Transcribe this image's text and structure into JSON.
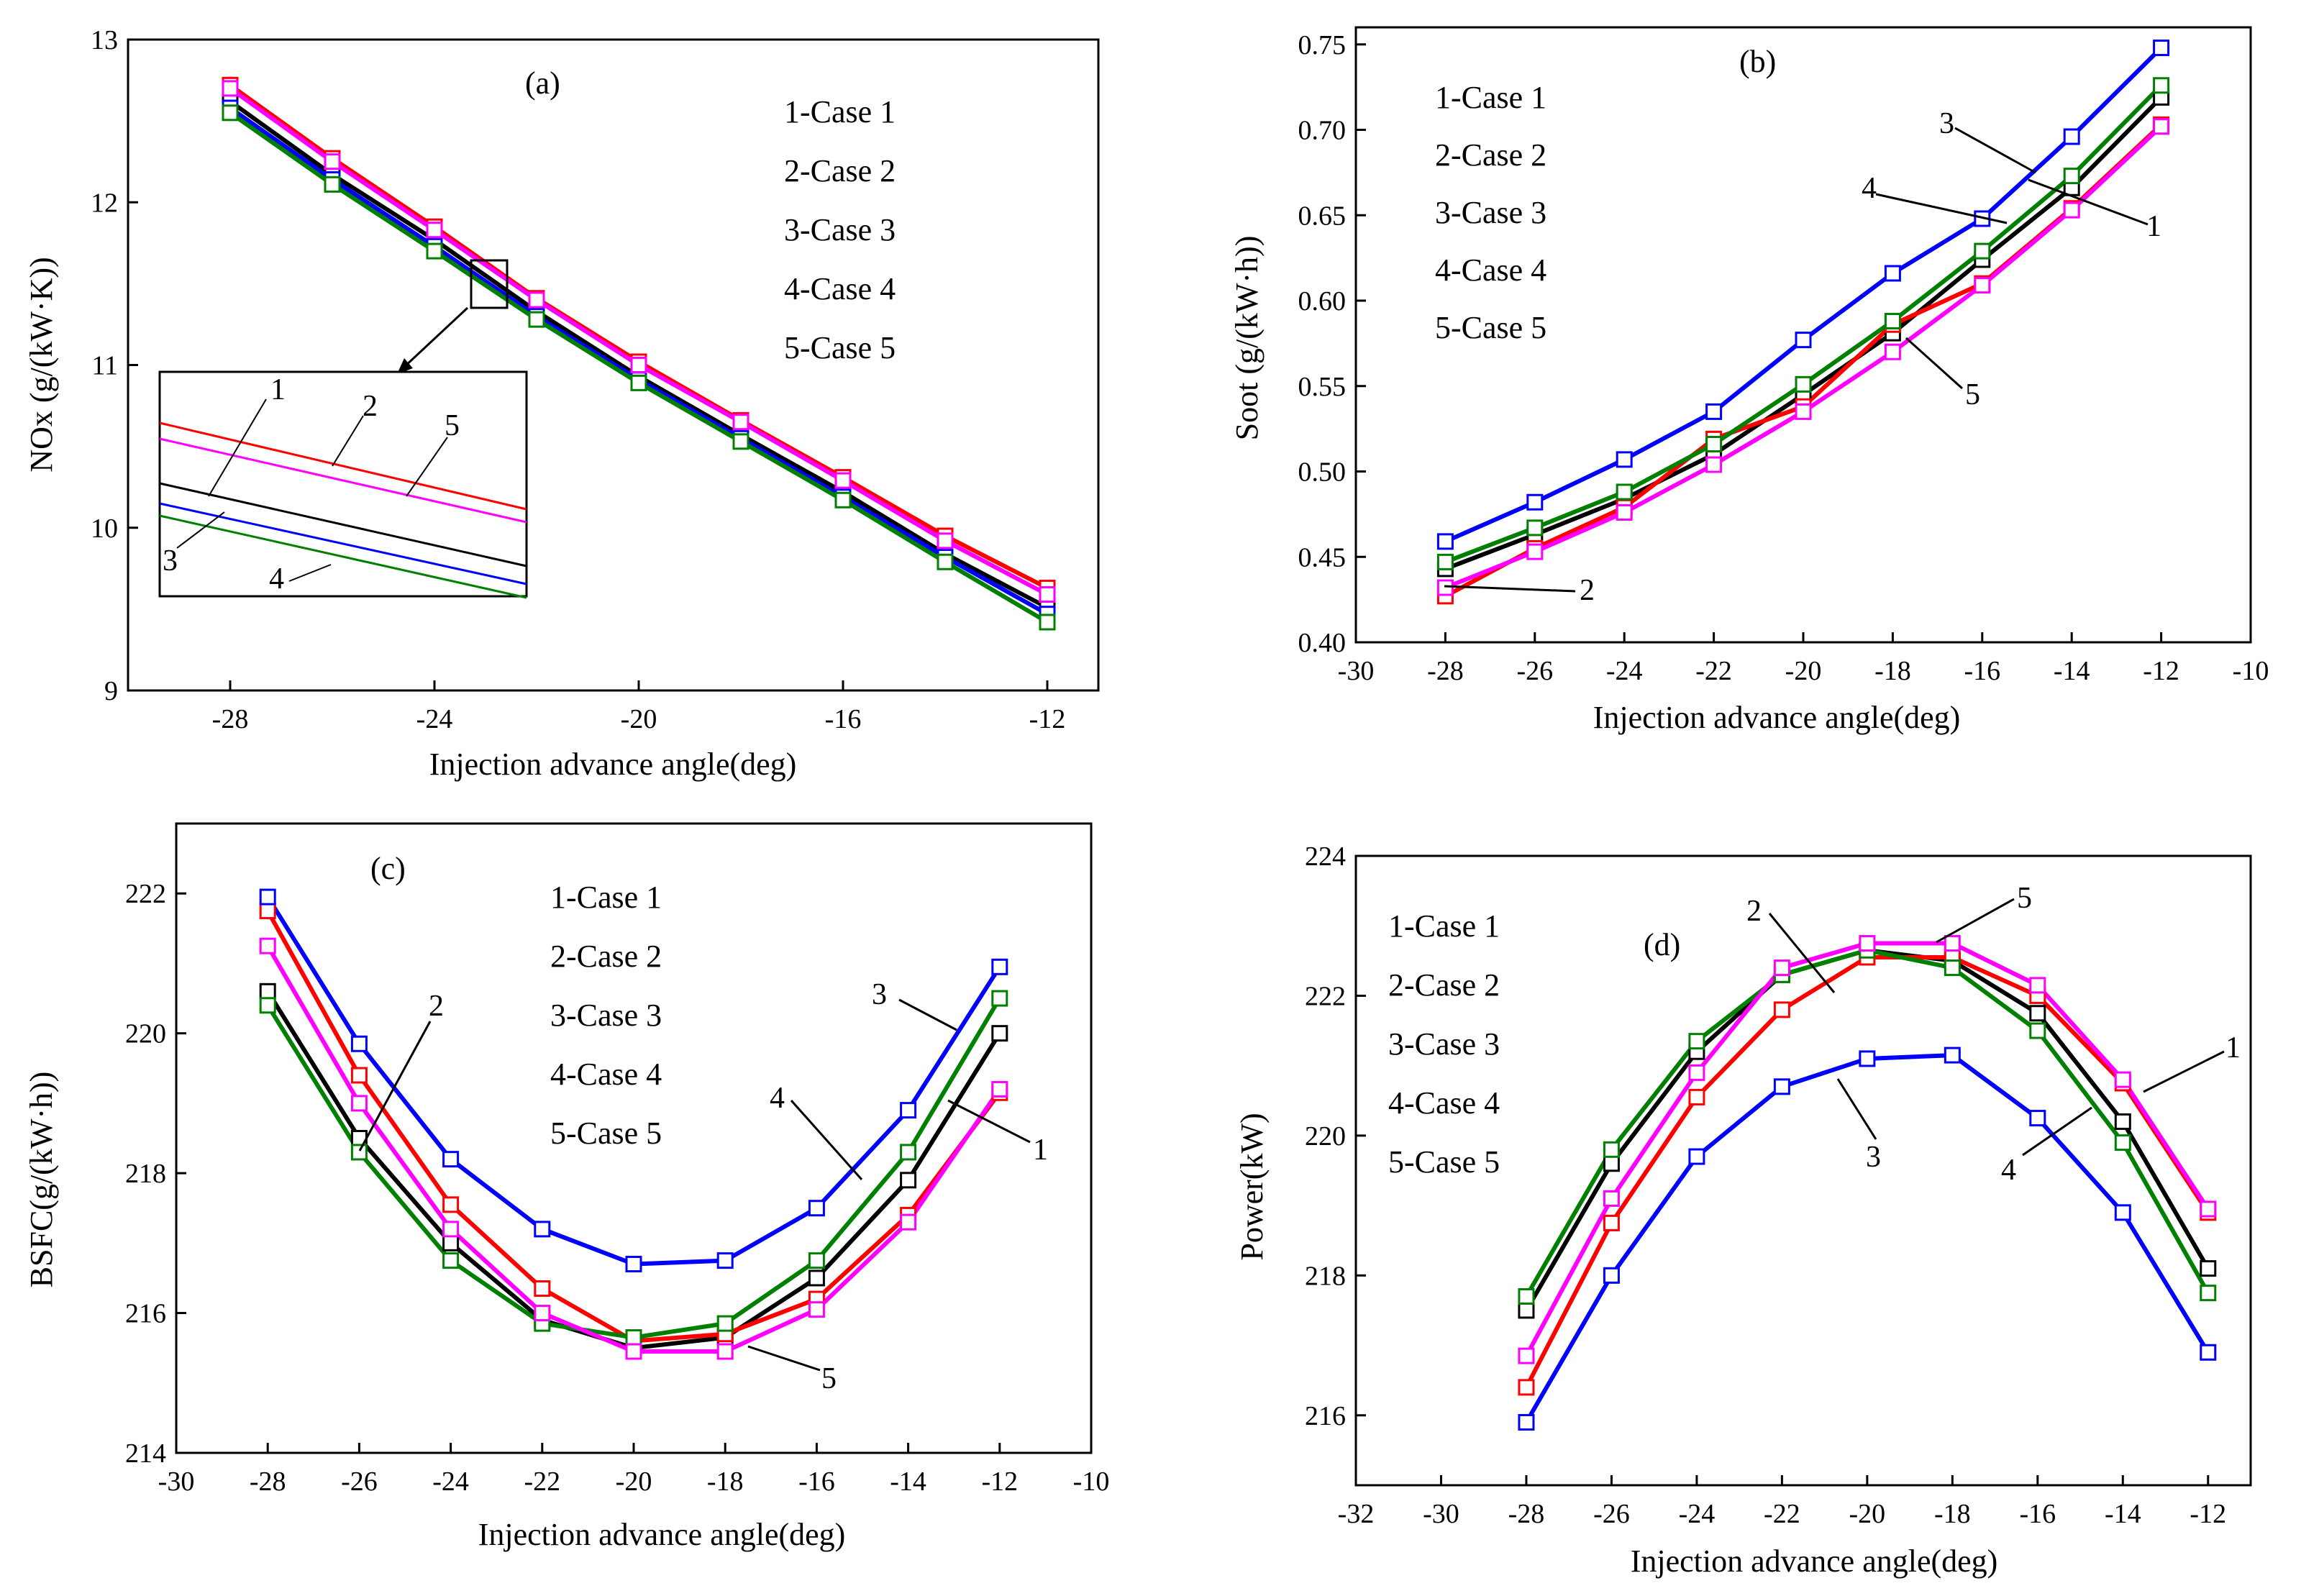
{
  "figure": {
    "legend_entries": [
      "1-Case 1",
      "2-Case 2",
      "3-Case 3",
      "4-Case 4",
      "5-Case 5"
    ],
    "series_colors": {
      "1": "#000000",
      "2": "#ff0000",
      "3": "#0000ff",
      "4": "#008000",
      "5": "#ff00ff"
    }
  },
  "chart_data": [
    {
      "id": "a",
      "type": "line",
      "panel_label": "(a)",
      "xlabel": "Injection advance  angle(deg)",
      "ylabel": "NOx (g/(kW·K))",
      "xlim": [
        -30,
        -11
      ],
      "ylim": [
        9,
        13
      ],
      "xticks": [
        -28,
        -24,
        -20,
        -16,
        -12
      ],
      "yticks": [
        9,
        10,
        11,
        12,
        13
      ],
      "x": [
        -28,
        -26,
        -24,
        -22,
        -20,
        -18,
        -16,
        -14,
        -12
      ],
      "series": [
        {
          "name": "1-Case 1",
          "values": [
            12.62,
            12.17,
            11.77,
            11.33,
            10.93,
            10.57,
            10.22,
            9.84,
            9.51
          ]
        },
        {
          "name": "2-Case 2",
          "values": [
            12.72,
            12.27,
            11.85,
            11.41,
            11.02,
            10.66,
            10.31,
            9.95,
            9.63
          ]
        },
        {
          "name": "3-Case 3",
          "values": [
            12.58,
            12.14,
            11.73,
            11.3,
            10.91,
            10.55,
            10.19,
            9.82,
            9.47
          ]
        },
        {
          "name": "4-Case 4",
          "values": [
            12.55,
            12.11,
            11.7,
            11.28,
            10.89,
            10.53,
            10.17,
            9.79,
            9.42
          ]
        },
        {
          "name": "5-Case 5",
          "values": [
            12.7,
            12.25,
            11.83,
            11.4,
            11.0,
            10.65,
            10.29,
            9.92,
            9.59
          ]
        }
      ],
      "inset_labels": [
        "1",
        "2",
        "5",
        "3",
        "4"
      ]
    },
    {
      "id": "b",
      "type": "line",
      "panel_label": "(b)",
      "xlabel": "Injection advance  angle(deg)",
      "ylabel": "Soot (g/(kW·h))",
      "xlim": [
        -30,
        -10
      ],
      "ylim": [
        0.4,
        0.76
      ],
      "xticks": [
        -30,
        -28,
        -26,
        -24,
        -22,
        -20,
        -18,
        -16,
        -14,
        -12,
        -10
      ],
      "xtick_labels": [
        "-30",
        "-28",
        "-26",
        "-24",
        "-22",
        "-20",
        "-18",
        "-16",
        "-14",
        "-12",
        "-10"
      ],
      "yticks": [
        0.4,
        0.45,
        0.5,
        0.55,
        0.6,
        0.65,
        0.7,
        0.75
      ],
      "ytick_labels": [
        "0.40",
        "0.45",
        "0.50",
        "0.55",
        "0.60",
        "0.65",
        "0.70",
        "0.75"
      ],
      "x": [
        -28,
        -26,
        -24,
        -22,
        -20,
        -18,
        -16,
        -14,
        -12
      ],
      "series": [
        {
          "name": "1-Case 1",
          "values": [
            0.443,
            0.463,
            0.484,
            0.51,
            0.545,
            0.581,
            0.624,
            0.666,
            0.719
          ]
        },
        {
          "name": "2-Case 2",
          "values": [
            0.427,
            0.455,
            0.479,
            0.519,
            0.538,
            0.586,
            0.61,
            0.654,
            0.703
          ]
        },
        {
          "name": "3-Case 3",
          "values": [
            0.459,
            0.482,
            0.507,
            0.535,
            0.577,
            0.616,
            0.648,
            0.696,
            0.748
          ]
        },
        {
          "name": "4-Case 4",
          "values": [
            0.447,
            0.467,
            0.488,
            0.516,
            0.551,
            0.588,
            0.629,
            0.673,
            0.726
          ]
        },
        {
          "name": "5-Case 5",
          "values": [
            0.432,
            0.453,
            0.476,
            0.504,
            0.535,
            0.57,
            0.609,
            0.653,
            0.702
          ]
        }
      ],
      "callouts": [
        "3",
        "4",
        "1",
        "5",
        "2"
      ]
    },
    {
      "id": "c",
      "type": "line",
      "panel_label": "(c)",
      "xlabel": "Injection advance  angle(deg)",
      "ylabel": "BSFC(g/(kW·h))",
      "xlim": [
        -30,
        -10
      ],
      "ylim": [
        214,
        223
      ],
      "xticks": [
        -30,
        -28,
        -26,
        -24,
        -22,
        -20,
        -18,
        -16,
        -14,
        -12,
        -10
      ],
      "yticks": [
        214,
        216,
        218,
        220,
        222
      ],
      "x": [
        -28,
        -26,
        -24,
        -22,
        -20,
        -18,
        -16,
        -14,
        -12
      ],
      "series": [
        {
          "name": "1-Case 1",
          "values": [
            220.6,
            218.5,
            217.0,
            215.9,
            215.5,
            215.65,
            216.5,
            217.9,
            220.0
          ]
        },
        {
          "name": "2-Case 2",
          "values": [
            221.75,
            219.4,
            217.55,
            216.35,
            215.6,
            215.7,
            216.2,
            217.4,
            219.15
          ]
        },
        {
          "name": "3-Case 3",
          "values": [
            221.95,
            219.85,
            218.2,
            217.2,
            216.7,
            216.75,
            217.5,
            218.9,
            220.95
          ]
        },
        {
          "name": "4-Case 4",
          "values": [
            220.4,
            218.3,
            216.75,
            215.85,
            215.65,
            215.85,
            216.75,
            218.3,
            220.5
          ]
        },
        {
          "name": "5-Case 5",
          "values": [
            221.25,
            219.0,
            217.2,
            216.0,
            215.45,
            215.45,
            216.05,
            217.3,
            219.2
          ]
        }
      ],
      "callouts": [
        "2",
        "3",
        "4",
        "1",
        "5"
      ]
    },
    {
      "id": "d",
      "type": "line",
      "panel_label": "(d)",
      "xlabel": "Injection advance  angle(deg)",
      "ylabel": "Power(kW)",
      "xlim": [
        -32,
        -11
      ],
      "ylim": [
        215,
        224
      ],
      "xticks": [
        -32,
        -30,
        -28,
        -26,
        -24,
        -22,
        -20,
        -18,
        -16,
        -14,
        -12
      ],
      "yticks": [
        216,
        218,
        220,
        222,
        224
      ],
      "x": [
        -28,
        -26,
        -24,
        -22,
        -20,
        -18,
        -16,
        -14,
        -12
      ],
      "series": [
        {
          "name": "1-Case 1",
          "values": [
            217.5,
            219.6,
            221.2,
            222.3,
            222.65,
            222.5,
            221.75,
            220.2,
            218.1
          ]
        },
        {
          "name": "2-Case 2",
          "values": [
            216.4,
            218.75,
            220.55,
            221.8,
            222.55,
            222.55,
            222.0,
            220.75,
            218.9
          ]
        },
        {
          "name": "3-Case 3",
          "values": [
            215.9,
            218.0,
            219.7,
            220.7,
            221.1,
            221.15,
            220.25,
            218.9,
            216.9
          ]
        },
        {
          "name": "4-Case 4",
          "values": [
            217.7,
            219.8,
            221.35,
            222.3,
            222.65,
            222.4,
            221.5,
            219.9,
            217.75
          ]
        },
        {
          "name": "5-Case 5",
          "values": [
            216.85,
            219.1,
            220.9,
            222.4,
            222.75,
            222.75,
            222.15,
            220.8,
            218.95
          ]
        }
      ],
      "callouts": [
        "2",
        "5",
        "1",
        "3",
        "4"
      ]
    }
  ]
}
